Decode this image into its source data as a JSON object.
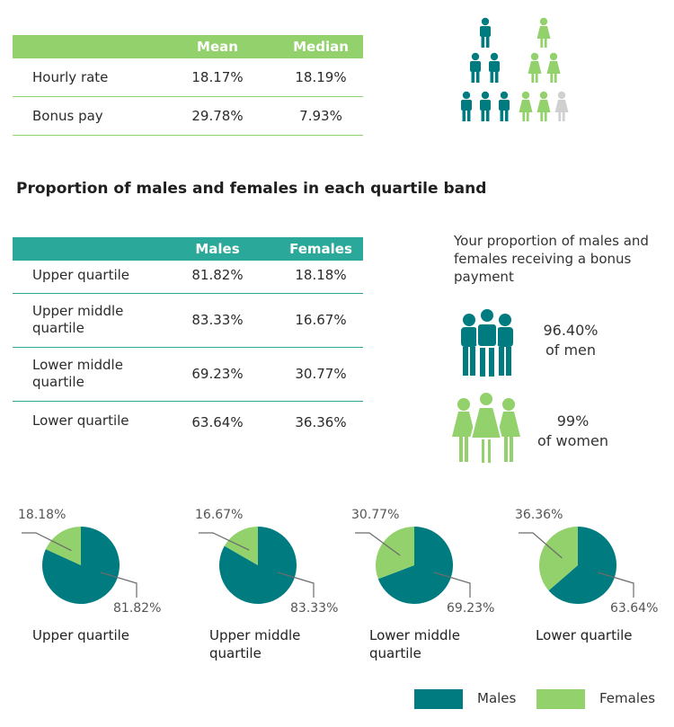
{
  "gap_table": {
    "headers": [
      "",
      "Mean",
      "Median"
    ],
    "rows": [
      {
        "label": "Hourly rate",
        "mean": "18.17%",
        "median": "18.19%"
      },
      {
        "label": "Bonus pay",
        "mean": "29.78%",
        "median": "7.93%"
      }
    ]
  },
  "section_title": "Proportion of males and females in each quartile band",
  "quartile_table": {
    "headers": [
      "",
      "Males",
      "Females"
    ],
    "rows": [
      {
        "label": "Upper quartile",
        "males": "81.82%",
        "females": "18.18%"
      },
      {
        "label": "Upper middle quartile",
        "label_lines": [
          "Upper middle",
          "quartile"
        ],
        "males": "83.33%",
        "females": "16.67%"
      },
      {
        "label": "Lower middle quartile",
        "label_lines": [
          "Lower middle",
          "quartile"
        ],
        "males": "69.23%",
        "females": "30.77%"
      },
      {
        "label": "Lower quartile",
        "males": "63.64%",
        "females": "36.36%"
      }
    ]
  },
  "bonus": {
    "text": "Your proportion of males and females receiving a bonus payment",
    "men_value": "96.40%",
    "men_label": "of men",
    "women_value": "99%",
    "women_label": "of women"
  },
  "colors": {
    "male": "#007c80",
    "female": "#93d16c",
    "grey": "#d0d0d0",
    "male_header": "#2aa89a"
  },
  "icons": [
    "male-pyramid-icon",
    "female-pyramid-icon",
    "male-group-icon",
    "female-group-icon"
  ],
  "chart_data": [
    {
      "type": "pie",
      "categories": [
        "Males",
        "Females"
      ],
      "values": [
        81.82,
        18.18
      ],
      "labels": [
        "81.82%",
        "18.18%"
      ],
      "caption_lines": [
        "Upper quartile"
      ]
    },
    {
      "type": "pie",
      "categories": [
        "Males",
        "Females"
      ],
      "values": [
        83.33,
        16.67
      ],
      "labels": [
        "83.33%",
        "16.67%"
      ],
      "caption_lines": [
        "Upper middle",
        "quartile"
      ]
    },
    {
      "type": "pie",
      "categories": [
        "Males",
        "Females"
      ],
      "values": [
        69.23,
        30.77
      ],
      "labels": [
        "69.23%",
        "30.77%"
      ],
      "caption_lines": [
        "Lower middle",
        "quartile"
      ]
    },
    {
      "type": "pie",
      "categories": [
        "Males",
        "Females"
      ],
      "values": [
        63.64,
        36.36
      ],
      "labels": [
        "63.64%",
        "36.36%"
      ],
      "caption_lines": [
        "Lower quartile"
      ]
    }
  ],
  "legend": {
    "male": "Males",
    "female": "Females"
  }
}
